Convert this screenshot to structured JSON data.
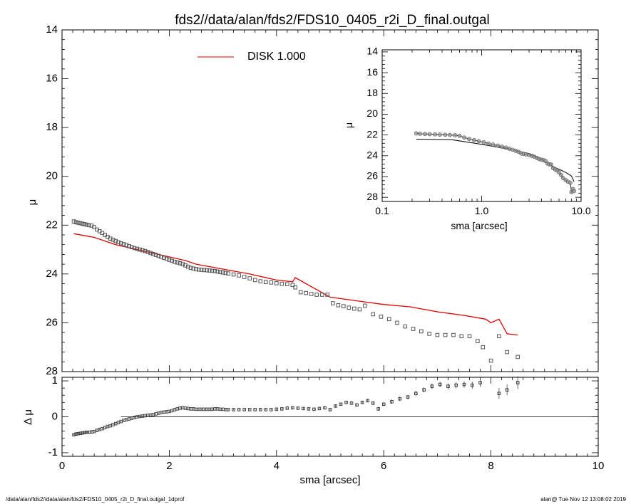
{
  "title": "fds2//data/alan/fds2/FDS10_0405_r2i_D_final.outgal",
  "footer": {
    "left": "/data/alan/fds2//data/alan/fds2/FDS10_0405_r2i_D_final.outgal_1dprof",
    "right": "alan@  Tue Nov 12 13:08:02 2019"
  },
  "colors": {
    "model": "#e00000",
    "data_points": "#555555",
    "axes": "#000000"
  },
  "chart_data": [
    {
      "id": "main",
      "type": "scatter",
      "xlabel": "",
      "ylabel": "μ",
      "xlim": [
        0,
        10
      ],
      "ylim": [
        28,
        14
      ],
      "y_inverted": true,
      "yticks": [
        14,
        16,
        18,
        20,
        22,
        24,
        26,
        28
      ],
      "x_minor_step": 0.2,
      "y_minor_step": 0.4,
      "legend": {
        "label": "DISK  1.000",
        "placement": "top-center"
      },
      "model": {
        "x": [
          0.22,
          0.6,
          1.0,
          1.5,
          2.0,
          2.3,
          2.5,
          3.0,
          3.5,
          4.0,
          4.3,
          4.35,
          5.0,
          5.5,
          6.0,
          6.5,
          7.0,
          7.5,
          7.9,
          8.0,
          8.15,
          8.3,
          8.5
        ],
        "y": [
          22.35,
          22.5,
          22.8,
          23.05,
          23.3,
          23.45,
          23.6,
          23.8,
          24.0,
          24.25,
          24.32,
          24.15,
          24.95,
          25.1,
          25.25,
          25.35,
          25.55,
          25.7,
          25.85,
          26.0,
          25.85,
          26.45,
          26.5
        ]
      },
      "data": {
        "x": [
          0.22,
          0.26,
          0.3,
          0.34,
          0.38,
          0.42,
          0.46,
          0.5,
          0.55,
          0.6,
          0.65,
          0.7,
          0.75,
          0.8,
          0.85,
          0.9,
          0.95,
          1.0,
          1.05,
          1.1,
          1.15,
          1.2,
          1.25,
          1.3,
          1.35,
          1.4,
          1.45,
          1.5,
          1.55,
          1.6,
          1.65,
          1.7,
          1.75,
          1.8,
          1.85,
          1.9,
          1.95,
          2.0,
          2.05,
          2.1,
          2.15,
          2.2,
          2.25,
          2.3,
          2.35,
          2.4,
          2.45,
          2.5,
          2.55,
          2.6,
          2.65,
          2.7,
          2.75,
          2.8,
          2.85,
          2.9,
          2.95,
          3.0,
          3.05,
          3.1,
          3.2,
          3.3,
          3.4,
          3.5,
          3.6,
          3.7,
          3.8,
          3.9,
          4.0,
          4.1,
          4.2,
          4.3,
          4.35,
          4.45,
          4.55,
          4.65,
          4.75,
          4.85,
          4.95,
          5.05,
          5.15,
          5.25,
          5.35,
          5.45,
          5.55,
          5.65,
          5.8,
          5.95,
          6.1,
          6.25,
          6.4,
          6.55,
          6.7,
          6.85,
          7.0,
          7.15,
          7.3,
          7.45,
          7.6,
          7.75,
          7.85,
          8.0,
          8.15,
          8.3,
          8.5
        ],
        "y": [
          21.85,
          21.88,
          21.9,
          21.92,
          21.94,
          21.96,
          21.98,
          22.0,
          22.02,
          22.08,
          22.18,
          22.25,
          22.32,
          22.4,
          22.48,
          22.55,
          22.6,
          22.65,
          22.7,
          22.74,
          22.78,
          22.82,
          22.86,
          22.9,
          22.94,
          22.97,
          23.0,
          23.03,
          23.06,
          23.1,
          23.14,
          23.18,
          23.22,
          23.26,
          23.3,
          23.34,
          23.38,
          23.42,
          23.46,
          23.5,
          23.53,
          23.56,
          23.6,
          23.65,
          23.7,
          23.75,
          23.78,
          23.8,
          23.82,
          23.83,
          23.84,
          23.85,
          23.86,
          23.87,
          23.88,
          23.9,
          23.92,
          23.94,
          23.96,
          23.98,
          24.02,
          24.06,
          24.12,
          24.18,
          24.25,
          24.3,
          24.33,
          24.35,
          24.38,
          24.4,
          24.42,
          24.45,
          24.55,
          24.75,
          24.78,
          24.82,
          24.85,
          24.85,
          24.85,
          25.2,
          25.28,
          25.32,
          25.38,
          25.42,
          25.45,
          25.3,
          25.65,
          25.75,
          25.85,
          26.0,
          26.15,
          26.25,
          26.35,
          26.45,
          26.5,
          26.5,
          26.5,
          26.55,
          26.55,
          26.75,
          27.0,
          27.55,
          26.55,
          27.2,
          27.4
        ]
      }
    },
    {
      "id": "residual",
      "type": "scatter",
      "xlabel": "sma [arcsec]",
      "ylabel": "Δ μ",
      "xlim": [
        0,
        10
      ],
      "ylim": [
        -1.1,
        1.1
      ],
      "xticks": [
        0,
        2,
        4,
        6,
        8,
        10
      ],
      "yticks": [
        -1,
        0,
        1
      ],
      "x_minor_step": 0.2,
      "y_minor_step": 0.2,
      "zero_line": {
        "from": 1.1,
        "to": 10
      },
      "x": [
        0.22,
        0.26,
        0.3,
        0.34,
        0.38,
        0.42,
        0.46,
        0.5,
        0.55,
        0.6,
        0.65,
        0.7,
        0.75,
        0.8,
        0.85,
        0.9,
        0.95,
        1.0,
        1.05,
        1.1,
        1.15,
        1.2,
        1.25,
        1.3,
        1.35,
        1.4,
        1.45,
        1.5,
        1.55,
        1.6,
        1.65,
        1.7,
        1.75,
        1.8,
        1.85,
        1.9,
        1.95,
        2.0,
        2.05,
        2.1,
        2.15,
        2.2,
        2.25,
        2.3,
        2.35,
        2.4,
        2.45,
        2.5,
        2.55,
        2.6,
        2.65,
        2.7,
        2.75,
        2.8,
        2.85,
        2.9,
        2.95,
        3.0,
        3.05,
        3.1,
        3.2,
        3.3,
        3.4,
        3.5,
        3.6,
        3.7,
        3.8,
        3.9,
        4.0,
        4.1,
        4.2,
        4.3,
        4.4,
        4.5,
        4.6,
        4.7,
        4.8,
        4.9,
        5.0,
        5.1,
        5.2,
        5.3,
        5.4,
        5.5,
        5.6,
        5.7,
        5.8,
        5.9,
        6.0,
        6.15,
        6.3,
        6.45,
        6.6,
        6.75,
        6.9,
        7.05,
        7.2,
        7.35,
        7.5,
        7.65,
        7.8,
        8.15,
        8.3,
        8.5
      ],
      "y": [
        -0.5,
        -0.48,
        -0.47,
        -0.46,
        -0.45,
        -0.44,
        -0.43,
        -0.43,
        -0.42,
        -0.41,
        -0.38,
        -0.35,
        -0.33,
        -0.3,
        -0.27,
        -0.25,
        -0.22,
        -0.19,
        -0.16,
        -0.13,
        -0.1,
        -0.08,
        -0.06,
        -0.04,
        -0.02,
        0.0,
        0.01,
        0.02,
        0.03,
        0.04,
        0.05,
        0.06,
        0.08,
        0.1,
        0.12,
        0.13,
        0.14,
        0.15,
        0.17,
        0.2,
        0.22,
        0.24,
        0.25,
        0.24,
        0.23,
        0.22,
        0.22,
        0.21,
        0.21,
        0.21,
        0.21,
        0.21,
        0.21,
        0.21,
        0.22,
        0.22,
        0.21,
        0.21,
        0.2,
        0.2,
        0.2,
        0.2,
        0.2,
        0.2,
        0.2,
        0.2,
        0.2,
        0.2,
        0.21,
        0.22,
        0.24,
        0.25,
        0.24,
        0.23,
        0.22,
        0.21,
        0.23,
        0.25,
        0.2,
        0.3,
        0.35,
        0.4,
        0.38,
        0.33,
        0.4,
        0.45,
        0.38,
        0.22,
        0.35,
        0.42,
        0.5,
        0.55,
        0.65,
        0.75,
        0.85,
        0.9,
        0.85,
        0.88,
        0.9,
        0.88,
        0.95,
        0.65,
        0.75,
        0.95
      ],
      "y_err": [
        0.02,
        0.02,
        0.02,
        0.02,
        0.02,
        0.02,
        0.02,
        0.02,
        0.02,
        0.02,
        0.02,
        0.02,
        0.02,
        0.02,
        0.02,
        0.02,
        0.02,
        0.02,
        0.02,
        0.02,
        0.02,
        0.02,
        0.02,
        0.02,
        0.02,
        0.02,
        0.02,
        0.02,
        0.02,
        0.02,
        0.02,
        0.02,
        0.02,
        0.02,
        0.02,
        0.02,
        0.02,
        0.02,
        0.02,
        0.02,
        0.02,
        0.02,
        0.02,
        0.02,
        0.02,
        0.02,
        0.02,
        0.02,
        0.02,
        0.02,
        0.02,
        0.02,
        0.02,
        0.02,
        0.02,
        0.02,
        0.02,
        0.02,
        0.02,
        0.02,
        0.02,
        0.02,
        0.02,
        0.02,
        0.02,
        0.02,
        0.02,
        0.02,
        0.03,
        0.03,
        0.03,
        0.03,
        0.03,
        0.03,
        0.03,
        0.03,
        0.03,
        0.03,
        0.03,
        0.04,
        0.04,
        0.04,
        0.04,
        0.04,
        0.05,
        0.05,
        0.05,
        0.05,
        0.05,
        0.06,
        0.06,
        0.06,
        0.07,
        0.07,
        0.08,
        0.08,
        0.08,
        0.09,
        0.09,
        0.1,
        0.12,
        0.15,
        0.15,
        0.18
      ]
    },
    {
      "id": "inset",
      "type": "scatter",
      "xlabel": "sma [arcsec]",
      "ylabel": "μ",
      "x_scale": "log",
      "xlim": [
        0.1,
        10
      ],
      "ylim": [
        28.4,
        13.8
      ],
      "y_inverted": true,
      "xticks": [
        0.1,
        1.0,
        10.0
      ],
      "xticklabels": [
        "0.1",
        "1.0",
        "10.0"
      ],
      "yticks": [
        14,
        16,
        18,
        20,
        22,
        24,
        26,
        28
      ],
      "y_minor_step": 0.4,
      "model": {
        "x": [
          0.22,
          0.5,
          1.0,
          1.5,
          2.0,
          3.0,
          4.0,
          5.0,
          6.0,
          7.0,
          8.0,
          8.5
        ],
        "y": [
          22.4,
          22.45,
          22.9,
          23.2,
          23.4,
          23.8,
          24.3,
          24.95,
          25.3,
          25.6,
          25.95,
          26.5
        ]
      },
      "data": {
        "x": [
          0.22,
          0.24,
          0.27,
          0.3,
          0.34,
          0.38,
          0.43,
          0.48,
          0.54,
          0.6,
          0.67,
          0.75,
          0.84,
          0.94,
          1.05,
          1.17,
          1.3,
          1.45,
          1.6,
          1.75,
          1.9,
          2.05,
          2.2,
          2.35,
          2.5,
          2.65,
          2.8,
          3.0,
          3.2,
          3.4,
          3.6,
          3.8,
          4.0,
          4.2,
          4.4,
          4.6,
          4.8,
          5.0,
          5.25,
          5.5,
          5.75,
          6.0,
          6.3,
          6.6,
          7.0,
          7.4,
          7.8,
          8.0,
          8.3,
          8.5
        ],
        "y": [
          21.85,
          21.88,
          21.9,
          21.92,
          21.94,
          21.96,
          21.98,
          22.0,
          22.03,
          22.08,
          22.25,
          22.38,
          22.5,
          22.6,
          22.7,
          22.82,
          22.92,
          23.02,
          23.12,
          23.22,
          23.32,
          23.42,
          23.52,
          23.62,
          23.78,
          23.82,
          23.86,
          23.93,
          24.0,
          24.1,
          24.22,
          24.32,
          24.38,
          24.42,
          24.5,
          24.75,
          24.82,
          24.85,
          25.2,
          25.32,
          25.42,
          25.6,
          25.85,
          26.15,
          26.35,
          26.5,
          26.6,
          27.5,
          27.2,
          27.4
        ]
      }
    }
  ]
}
